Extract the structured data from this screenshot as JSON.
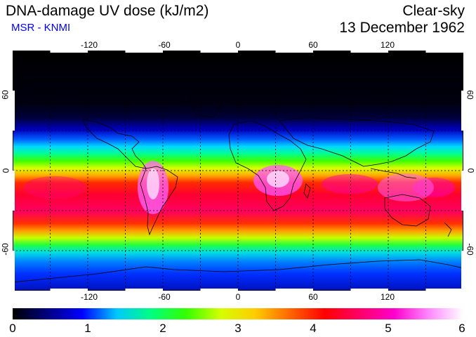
{
  "header": {
    "title": "DNA-damage UV dose (kJ/m2)",
    "subtitle": "MSR - KNMI",
    "product": "Clear-sky",
    "date": "13 December 1962"
  },
  "map": {
    "longitude_ticks": [
      "-120",
      "-60",
      "0",
      "60",
      "120"
    ],
    "longitude_values": [
      -120,
      -60,
      0,
      60,
      120
    ],
    "latitude_ticks": [
      "60",
      "0",
      "-60"
    ],
    "latitude_values": [
      60,
      0,
      -60
    ],
    "lon_range": [
      -180,
      180
    ],
    "lat_range": [
      -90,
      90
    ]
  },
  "colorbar": {
    "labels": [
      "0",
      "1",
      "2",
      "3",
      "4",
      "5",
      "6"
    ],
    "range": [
      0,
      6
    ],
    "colors": [
      "#000000",
      "#000080",
      "#0000ff",
      "#00c8ff",
      "#00ff80",
      "#33ff00",
      "#d4ff00",
      "#ffcc00",
      "#ff6600",
      "#ff0000",
      "#ff0066",
      "#ff00cc",
      "#ff88ff",
      "#ffffff"
    ]
  }
}
